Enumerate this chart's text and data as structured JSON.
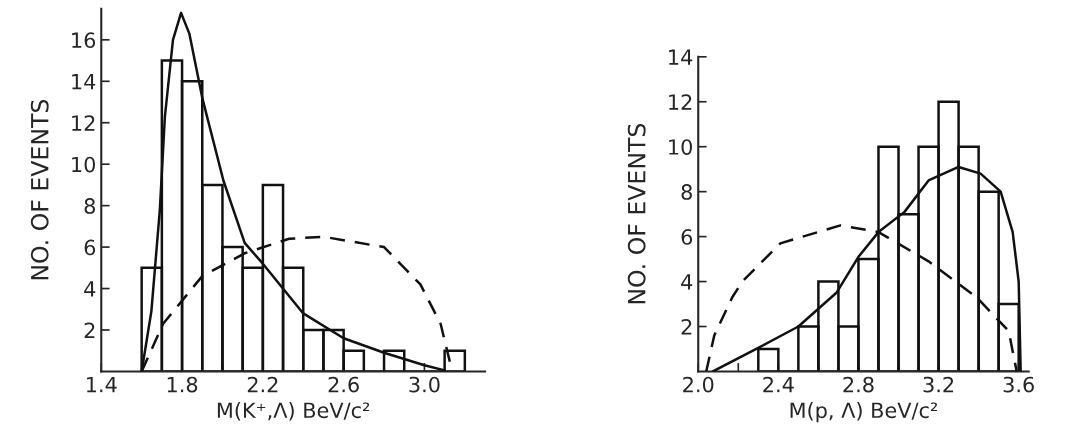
{
  "chart_data": [
    {
      "type": "histogram",
      "xlabel": "M(K⁺,Λ) BeV/c²",
      "ylabel": "NO. OF EVENTS",
      "color": "#111111",
      "grid": false,
      "bins": [
        1.6,
        1.7,
        1.8,
        1.9,
        2.0,
        2.1,
        2.2,
        2.3,
        2.4,
        2.5,
        2.6,
        2.7,
        2.8,
        2.9,
        3.0,
        3.1,
        3.2
      ],
      "values": [
        5,
        15,
        14,
        9,
        6,
        5,
        9,
        5,
        2,
        2,
        1,
        0,
        1,
        0,
        0,
        1
      ],
      "xlim": [
        1.4,
        3.3
      ],
      "ylim": [
        0,
        17.5
      ],
      "xticks": [
        1.4,
        {
          "value": 1.6,
          "label": null
        },
        1.8,
        {
          "value": 2.0,
          "label": null
        },
        2.2,
        {
          "value": 2.4,
          "label": null
        },
        2.6,
        {
          "value": 2.8,
          "label": null
        },
        {
          "value": 3.0,
          "label": "3.0"
        }
      ],
      "yticks": [
        2,
        4,
        6,
        8,
        10,
        12,
        14,
        16
      ],
      "series": [
        {
          "type": "line",
          "line_style": "solid",
          "color": "#111111",
          "x": [
            1.6,
            1.648,
            1.69,
            1.715,
            1.755,
            1.795,
            1.836,
            1.9,
            2.005,
            2.11,
            2.2,
            2.4,
            2.6,
            2.8,
            3.0,
            3.1
          ],
          "values": [
            0,
            2.9,
            7.8,
            12.3,
            16,
            17.3,
            16.3,
            13.2,
            9.2,
            6.2,
            5.2,
            2.8,
            1.6,
            0.9,
            0.3,
            0.05
          ]
        },
        {
          "type": "line",
          "line_style": "dashed",
          "color": "#111111",
          "x": [
            1.6,
            1.706,
            1.9,
            2.11,
            2.33,
            2.5,
            2.8,
            2.98,
            3.08,
            3.13,
            3.14
          ],
          "values": [
            0,
            2.3,
            4.6,
            5.7,
            6.4,
            6.5,
            6.0,
            4.2,
            2.3,
            0.3,
            0
          ]
        }
      ]
    },
    {
      "type": "histogram",
      "xlabel": "M(p, Λ) BeV/c²",
      "ylabel": "NO. OF EVENTS",
      "color": "#111111",
      "grid": false,
      "bins": [
        2.3,
        2.4,
        2.5,
        2.6,
        2.7,
        2.8,
        2.9,
        3.0,
        3.1,
        3.2,
        3.3,
        3.4,
        3.5,
        3.6
      ],
      "values": [
        1,
        0,
        2,
        4,
        2,
        5,
        10,
        7,
        10,
        12,
        10,
        8,
        3
      ],
      "xlim": [
        2.0,
        3.65
      ],
      "ylim": [
        0,
        14
      ],
      "xticks": [
        {
          "value": 2.0,
          "label": "2.0"
        },
        {
          "value": 2.2,
          "label": null
        },
        2.4,
        {
          "value": 2.6,
          "label": null
        },
        2.8,
        {
          "value": 3.0,
          "label": null
        },
        3.2,
        {
          "value": 3.4,
          "label": null
        },
        3.6
      ],
      "yticks": [
        2,
        4,
        6,
        8,
        10,
        12,
        14
      ],
      "series": [
        {
          "type": "line",
          "line_style": "solid",
          "color": "#111111",
          "x": [
            2.073,
            2.29,
            2.5,
            2.69,
            2.8,
            2.9,
            3.03,
            3.15,
            3.3,
            3.41,
            3.51,
            3.57,
            3.6,
            3.61
          ],
          "values": [
            0,
            1.0,
            2.0,
            3.5,
            5.1,
            6.2,
            7.1,
            8.5,
            9.1,
            8.8,
            8.0,
            6.2,
            4.0,
            0
          ]
        },
        {
          "type": "line",
          "line_style": "dashed",
          "color": "#111111",
          "x": [
            2.04,
            2.08,
            2.17,
            2.22,
            2.41,
            2.71,
            2.9,
            3.15,
            3.39,
            3.55,
            3.59
          ],
          "values": [
            0,
            1.6,
            3.3,
            4.0,
            5.7,
            6.5,
            6.2,
            4.9,
            3.3,
            1.8,
            0
          ]
        }
      ]
    }
  ]
}
